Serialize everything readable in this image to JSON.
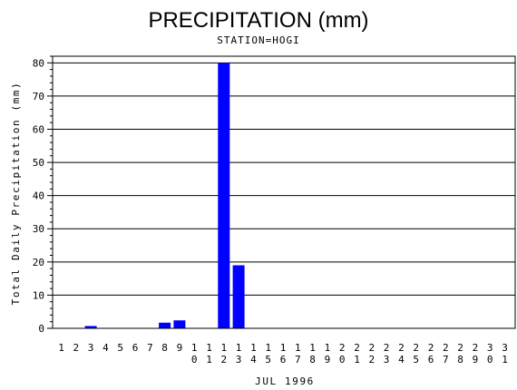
{
  "chart_data": {
    "type": "bar",
    "title": "PRECIPITATION (mm)",
    "subtitle": "STATION=HOGI",
    "xlabel": "JUL 1996",
    "ylabel": "Total Daily Precipitation (mm)",
    "ylim": [
      0,
      82
    ],
    "yticks": [
      0,
      10,
      20,
      30,
      40,
      50,
      60,
      70,
      80
    ],
    "categories": [
      "1",
      "2",
      "3",
      "4",
      "5",
      "6",
      "7",
      "8",
      "9",
      "10",
      "11",
      "12",
      "13",
      "14",
      "15",
      "16",
      "17",
      "18",
      "19",
      "20",
      "21",
      "22",
      "23",
      "24",
      "25",
      "26",
      "27",
      "28",
      "29",
      "30",
      "31"
    ],
    "values": [
      0,
      0,
      0.7,
      0,
      0,
      0,
      0,
      1.7,
      2.4,
      0,
      0,
      80,
      19,
      0,
      0,
      0,
      0,
      0,
      0,
      0,
      0,
      0,
      0,
      0,
      0,
      0,
      0,
      0,
      0,
      0,
      0
    ],
    "grid": true,
    "bar_color": "#0000ff"
  }
}
